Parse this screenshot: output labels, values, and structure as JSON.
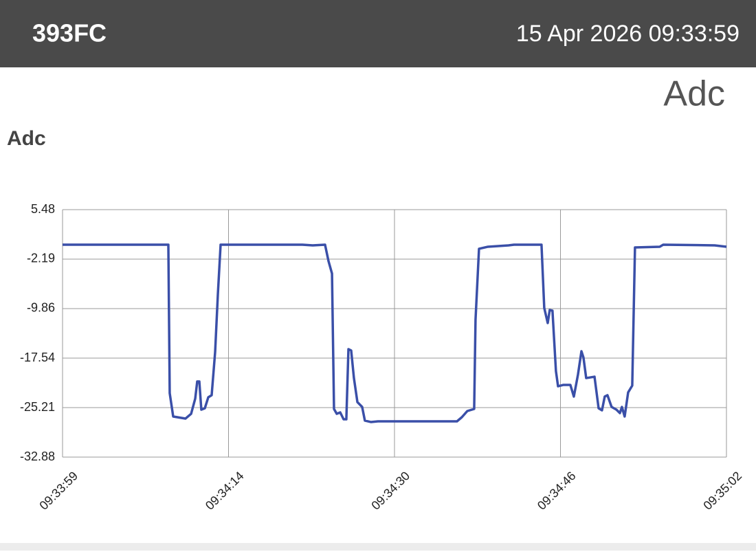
{
  "header": {
    "device": "393FC",
    "timestamp": "15 Apr 2026 09:33:59"
  },
  "panel_title": "Adc",
  "chart_data": {
    "type": "line",
    "title": "Adc",
    "color": "#3a4fa8",
    "grid": true,
    "x": [
      "09:33:59",
      "09:34:09.04",
      "09:34:09.17",
      "09:34:09.50",
      "09:34:10.67",
      "09:34:11.20",
      "09:34:11.59",
      "09:34:11.78",
      "09:34:11.98",
      "09:34:12.17",
      "09:34:12.50",
      "09:34:12.83",
      "09:34:13.15",
      "09:34:13.48",
      "09:34:13.74",
      "09:34:14.00",
      "09:34:21.76",
      "09:34:22.74",
      "09:34:23.91",
      "09:34:24.24",
      "09:34:24.57",
      "09:34:24.76",
      "09:34:25.02",
      "09:34:25.35",
      "09:34:25.67",
      "09:34:25.93",
      "09:34:26.13",
      "09:34:26.39",
      "09:34:26.65",
      "09:34:26.98",
      "09:34:27.43",
      "09:34:27.69",
      "09:34:28.28",
      "09:34:28.93",
      "09:34:32.19",
      "09:34:36.43",
      "09:34:36.89",
      "09:34:37.41",
      "09:34:38.06",
      "09:34:38.19",
      "09:34:38.52",
      "09:34:39.37",
      "09:34:41.32",
      "09:34:41.84",
      "09:34:44.45",
      "09:34:44.71",
      "09:34:45.04",
      "09:34:45.23",
      "09:34:45.49",
      "09:34:45.82",
      "09:34:46.02",
      "09:34:46.54",
      "09:34:47.19",
      "09:34:47.52",
      "09:34:47.91",
      "09:34:48.24",
      "09:34:48.43",
      "09:34:48.69",
      "09:34:49.48",
      "09:34:49.87",
      "09:34:50.19",
      "09:34:50.45",
      "09:34:50.71",
      "09:34:51.10",
      "09:34:51.56",
      "09:34:51.89",
      "09:34:52.08",
      "09:34:52.34",
      "09:34:52.67",
      "09:34:53.06",
      "09:34:53.32",
      "09:34:55.67",
      "09:34:56.00",
      "09:35:00.89",
      "09:35:02"
    ],
    "values": [
      0.05,
      0.05,
      -22.97,
      -26.59,
      -26.91,
      -26.17,
      -23.82,
      -21.16,
      -21.16,
      -25.53,
      -25.32,
      -23.61,
      -23.29,
      -16.58,
      -7.63,
      0.05,
      0.05,
      -0.06,
      0.05,
      -2.51,
      -4.43,
      -25.42,
      -26.17,
      -25.95,
      -27.02,
      -27.02,
      -16.15,
      -16.36,
      -20.63,
      -24.36,
      -25.1,
      -27.23,
      -27.45,
      -27.34,
      -27.34,
      -27.34,
      -26.7,
      -25.74,
      -25.42,
      -11.58,
      -0.59,
      -0.27,
      -0.06,
      0.05,
      0.05,
      -9.76,
      -12.1,
      -10.08,
      -10.18,
      -19.56,
      -21.9,
      -21.69,
      -21.69,
      -23.5,
      -20.1,
      -16.47,
      -17.43,
      -20.63,
      -20.42,
      -25.32,
      -25.63,
      -23.5,
      -23.29,
      -25.1,
      -25.53,
      -26.06,
      -25.1,
      -26.59,
      -22.86,
      -21.8,
      -0.38,
      -0.27,
      0.05,
      -0.06,
      -0.27
    ],
    "xlim": [
      "09:33:59",
      "09:35:02"
    ],
    "xticks": [
      "09:33:59",
      {
        "value": "09:34:14.75",
        "label": "09:34:14"
      },
      {
        "value": "09:34:30.5",
        "label": "09:34:30"
      },
      {
        "value": "09:34:46.25",
        "label": "09:34:46"
      },
      "09:35:02"
    ],
    "ylim": [
      -32.88,
      5.48
    ],
    "yticks": [
      5.48,
      -2.19,
      -9.86,
      -17.54,
      -25.21,
      -32.88
    ]
  }
}
